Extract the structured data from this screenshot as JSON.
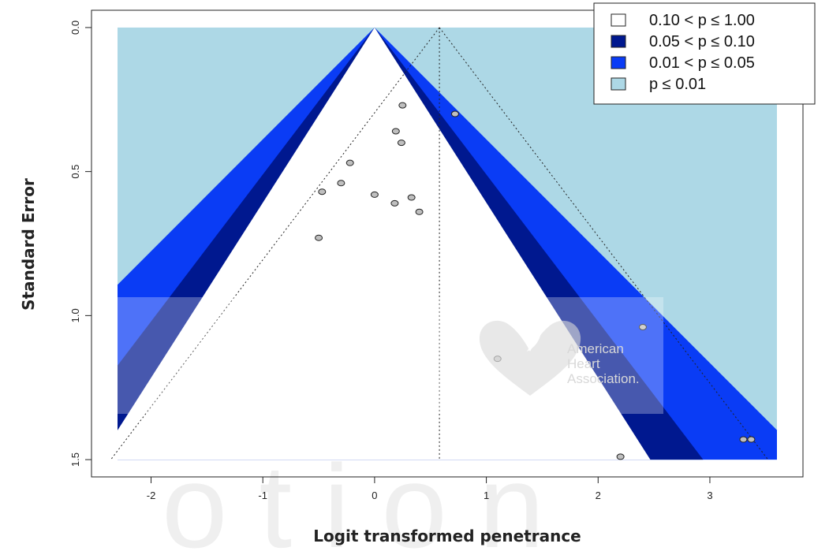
{
  "chart_data": {
    "type": "scatter",
    "subtype": "contour-enhanced funnel plot",
    "xlabel": "Logit transformed penetrance",
    "ylabel": "Standard Error",
    "xlim": [
      -2.3,
      3.6
    ],
    "ylim": [
      1.5,
      0.0
    ],
    "y_axis_inverted": true,
    "x_ticks": [
      -2,
      -1,
      0,
      1,
      2,
      3
    ],
    "x_tick_labels": [
      "-2",
      "-1",
      "0",
      "1",
      "2",
      "3"
    ],
    "y_ticks": [
      0.0,
      0.5,
      1.0,
      1.5
    ],
    "y_tick_labels": [
      "0.0",
      "0.5",
      "1.0",
      "1.5"
    ],
    "grid": false,
    "pooled_estimate": 0.58,
    "contour_center": 0.0,
    "contours": [
      {
        "label": "0.10 < p ≤ 1.00",
        "z": 1.645,
        "color": "#ffffff"
      },
      {
        "label": "0.05 < p ≤ 0.10",
        "z": 1.96,
        "color": "#00188f"
      },
      {
        "label": "0.01 < p ≤ 0.05",
        "z": 2.576,
        "color": "#0a3cf5"
      },
      {
        "label": "p ≤ 0.01",
        "color": "#add8e6"
      }
    ],
    "legend_position": "top-right",
    "points": [
      {
        "x": -0.5,
        "y": 0.73
      },
      {
        "x": -0.47,
        "y": 0.57
      },
      {
        "x": -0.3,
        "y": 0.54
      },
      {
        "x": -0.22,
        "y": 0.47
      },
      {
        "x": 0.0,
        "y": 0.58
      },
      {
        "x": 0.18,
        "y": 0.61
      },
      {
        "x": 0.19,
        "y": 0.36
      },
      {
        "x": 0.24,
        "y": 0.4
      },
      {
        "x": 0.25,
        "y": 0.27
      },
      {
        "x": 0.33,
        "y": 0.59
      },
      {
        "x": 0.4,
        "y": 0.64
      },
      {
        "x": 0.72,
        "y": 0.3
      },
      {
        "x": 1.1,
        "y": 1.15
      },
      {
        "x": 2.2,
        "y": 1.49
      },
      {
        "x": 2.4,
        "y": 1.04
      },
      {
        "x": 3.3,
        "y": 1.43
      },
      {
        "x": 3.37,
        "y": 1.43
      }
    ],
    "point_color": "#bfbfbf"
  },
  "watermark": {
    "lines": [
      "American",
      "Heart",
      "Association."
    ],
    "background_text": "otion"
  }
}
